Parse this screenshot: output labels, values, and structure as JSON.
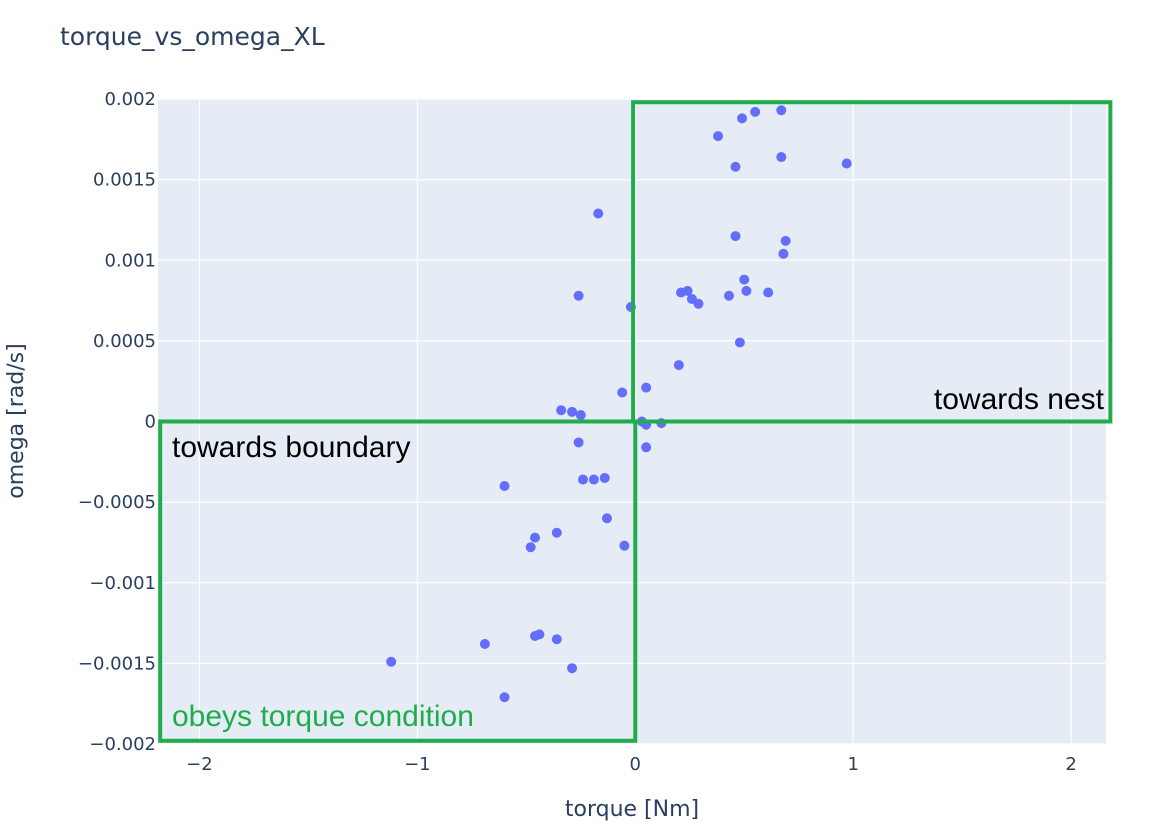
{
  "chart_data": {
    "type": "scatter",
    "title": "torque_vs_omega_XL",
    "xlabel": "torque [Nm]",
    "ylabel": "omega [rad/s]",
    "xlim": [
      -2.19,
      2.16
    ],
    "ylim": [
      -0.002,
      0.002
    ],
    "xticks": [
      -2,
      -1,
      0,
      1,
      2
    ],
    "xtick_labels": [
      "−2",
      "−1",
      "0",
      "1",
      "2"
    ],
    "yticks": [
      0.002,
      0.0015,
      0.001,
      0.0005,
      0,
      -0.0005,
      -0.001,
      -0.0015,
      -0.002
    ],
    "ytick_labels": [
      "0.002",
      "0.0015",
      "0.001",
      "0.0005",
      "0",
      "−0.0005",
      "−0.001",
      "−0.0015",
      "−0.002"
    ],
    "grid": true,
    "marker_color": "#636efa",
    "plot_bg": "#e5ecf6",
    "x": [
      0.67,
      0.55,
      0.49,
      0.38,
      0.46,
      0.67,
      0.97,
      -0.17,
      0.46,
      0.69,
      0.68,
      0.5,
      0.51,
      0.61,
      0.43,
      0.21,
      0.24,
      0.26,
      0.29,
      -0.26,
      -0.02,
      0.48,
      0.2,
      0.05,
      -0.06,
      -0.34,
      -0.29,
      -0.25,
      0.03,
      0.05,
      0.12,
      -0.26,
      0.05,
      -0.6,
      -0.24,
      -0.19,
      -0.14,
      -0.13,
      -0.36,
      -0.46,
      -0.48,
      -0.05,
      -1.12,
      -0.69,
      -0.46,
      -0.44,
      -0.36,
      -0.29,
      -0.6
    ],
    "y": [
      0.00193,
      0.00192,
      0.00188,
      0.00177,
      0.00158,
      0.00164,
      0.0016,
      0.00129,
      0.00115,
      0.00112,
      0.00104,
      0.00088,
      0.00081,
      0.0008,
      0.00078,
      0.0008,
      0.00081,
      0.00076,
      0.00073,
      0.00078,
      0.00071,
      0.00049,
      0.00035,
      0.00021,
      0.00018,
      7e-05,
      6e-05,
      4e-05,
      0.0,
      -2e-05,
      -1e-05,
      -0.00013,
      -0.00016,
      -0.0004,
      -0.00036,
      -0.00036,
      -0.00035,
      -0.0006,
      -0.00069,
      -0.00072,
      -0.00078,
      -0.00077,
      -0.00149,
      -0.00138,
      -0.00133,
      -0.00132,
      -0.00135,
      -0.00153,
      -0.00171
    ],
    "regions": [
      {
        "label": "towards nest",
        "x0": -0.01,
        "x1": 2.18,
        "y0": 0.0,
        "y1": 0.00198
      },
      {
        "label": "towards boundary",
        "x0": -2.18,
        "x1": 0.0,
        "y0": -0.00198,
        "y1": -0.0
      },
      {
        "label": "obeys torque condition",
        "x0": -2.18,
        "x1": 0.0,
        "y0": -0.00198,
        "y1": -0.0
      }
    ],
    "annotations": [
      {
        "text": "towards nest",
        "color": "#000000"
      },
      {
        "text": "towards boundary",
        "color": "#000000"
      },
      {
        "text": "obeys torque condition",
        "color": "#1fad4c"
      }
    ],
    "box_color": "#1fad4c"
  }
}
